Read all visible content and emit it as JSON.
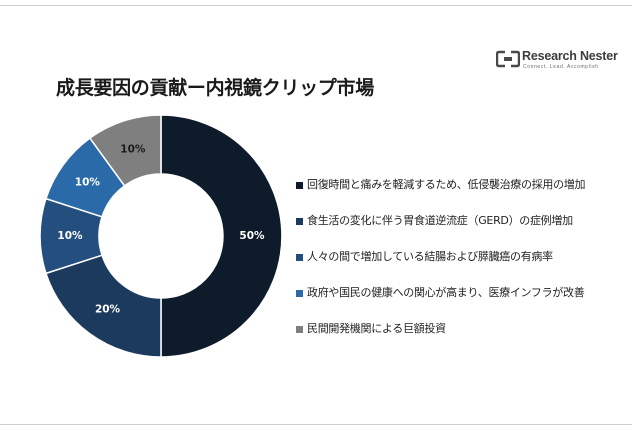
{
  "logo": {
    "name": "Research Nester",
    "tagline": "Connect. Lead. Accomplish"
  },
  "chart_data": {
    "type": "pie",
    "title": "成長要因の貢献ー内視鏡クリップ市場",
    "categories": [
      "回復時間と痛みを軽減するため、低侵襲治療の採用の増加",
      "食生活の変化に伴う胃食道逆流症（GERD）の症例増加",
      "人々の間で増加している結腸および膵臓癌の有病率",
      "政府や国民の健康への関心が高まり、医療インフラが改善",
      "民間開発機関による巨額投資"
    ],
    "values": [
      50,
      20,
      10,
      10,
      10
    ],
    "labels": [
      "50%",
      "20%",
      "10%",
      "10%",
      "10%"
    ],
    "colors": [
      "#0d1b2a",
      "#1c3a5e",
      "#234e7e",
      "#2a6aa8",
      "#7f7f7f"
    ],
    "label_colors": [
      "#ffffff",
      "#ffffff",
      "#ffffff",
      "#ffffff",
      "#1a1a1a"
    ],
    "legend_position": "right",
    "style": "donut"
  }
}
